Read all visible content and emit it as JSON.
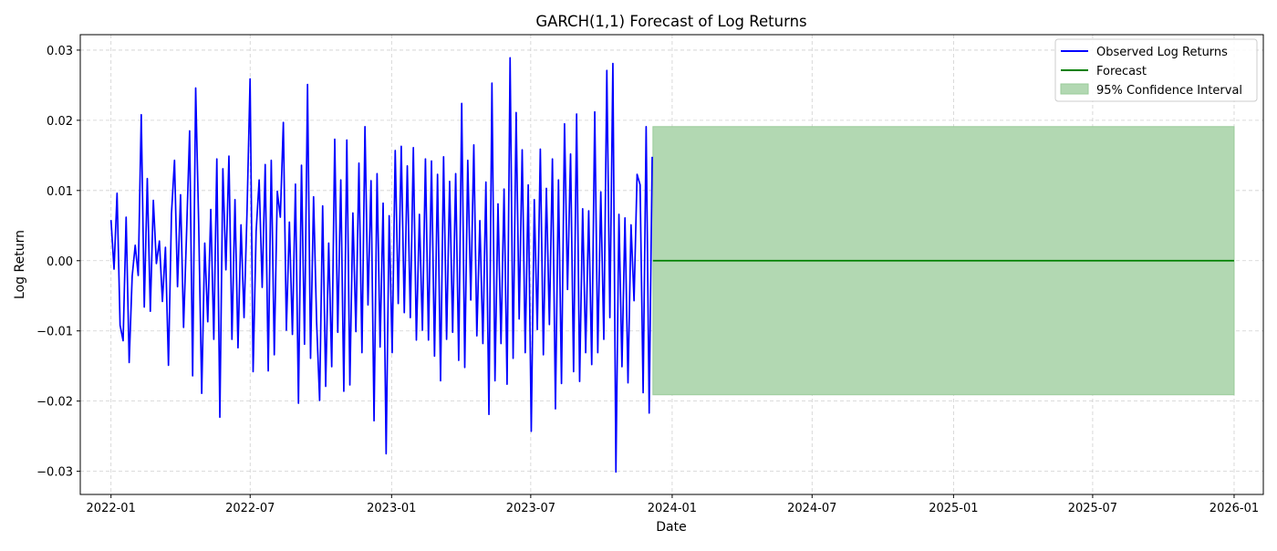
{
  "chart_data": {
    "type": "line",
    "title": "GARCH(1,1) Forecast of Log Returns",
    "xlabel": "Date",
    "ylabel": "Log Return",
    "x_range": [
      "2021-11-22",
      "2026-02-08"
    ],
    "ylim": [
      -0.0333,
      0.0322
    ],
    "x_ticks": [
      "2022-01",
      "2022-07",
      "2023-01",
      "2023-07",
      "2024-01",
      "2024-07",
      "2025-01",
      "2025-07",
      "2026-01"
    ],
    "y_ticks": [
      {
        "value": 0.03,
        "label": "0.03"
      },
      {
        "value": 0.02,
        "label": "0.02"
      },
      {
        "value": 0.01,
        "label": "0.01"
      },
      {
        "value": 0.0,
        "label": "0.00"
      },
      {
        "value": -0.01,
        "label": "−0.01"
      },
      {
        "value": -0.02,
        "label": "−0.02"
      },
      {
        "value": -0.03,
        "label": "−0.03"
      }
    ],
    "grid": true,
    "legend_position": "top-right",
    "series": [
      {
        "name": "Observed Log Returns",
        "kind": "line",
        "color": "#0000ff",
        "start_date": "2022-01-01",
        "end_date": "2023-12-06",
        "values": [
          0.0058,
          -0.0012,
          0.0096,
          -0.0092,
          -0.0114,
          0.0062,
          -0.0145,
          -0.0022,
          0.0022,
          -0.0021,
          0.0208,
          -0.0066,
          0.0117,
          -0.0072,
          0.0086,
          -0.0004,
          0.0028,
          -0.0058,
          0.0019,
          -0.0149,
          0.0067,
          0.0143,
          -0.0037,
          0.0094,
          -0.0095,
          0.0041,
          0.0185,
          -0.0164,
          0.0246,
          0.0052,
          -0.0189,
          0.0025,
          -0.0087,
          0.0073,
          -0.0112,
          0.0145,
          -0.0223,
          0.0131,
          -0.0013,
          0.0149,
          -0.0112,
          0.0087,
          -0.0124,
          0.0051,
          -0.0081,
          0.0072,
          0.0259,
          -0.0158,
          0.0042,
          0.0115,
          -0.0038,
          0.0137,
          -0.0157,
          0.0143,
          -0.0134,
          0.0099,
          0.0062,
          0.0197,
          -0.0099,
          0.0055,
          -0.0105,
          0.0109,
          -0.0203,
          0.0136,
          -0.0119,
          0.0251,
          -0.0139,
          0.0091,
          -0.0087,
          -0.0199,
          0.0078,
          -0.0179,
          0.0025,
          -0.0151,
          0.0173,
          -0.0102,
          0.0115,
          -0.0186,
          0.0172,
          -0.0177,
          0.0068,
          -0.0101,
          0.0139,
          -0.0131,
          0.0191,
          -0.0063,
          0.0114,
          -0.0228,
          0.0124,
          -0.0123,
          0.0082,
          -0.0275,
          0.0064,
          -0.0131,
          0.0157,
          -0.0061,
          0.0163,
          -0.0074,
          0.0135,
          -0.0081,
          0.0161,
          -0.0113,
          0.0066,
          -0.0099,
          0.0145,
          -0.0113,
          0.0142,
          -0.0136,
          0.0123,
          -0.0171,
          0.0148,
          -0.0112,
          0.0113,
          -0.0102,
          0.0124,
          -0.0142,
          0.0224,
          -0.0152,
          0.0143,
          -0.0056,
          0.0165,
          -0.0107,
          0.0057,
          -0.0118,
          0.0112,
          -0.0219,
          0.0253,
          -0.0171,
          0.0081,
          -0.0118,
          0.0102,
          -0.0176,
          0.0289,
          -0.0139,
          0.0211,
          -0.0083,
          0.0158,
          -0.0131,
          0.0108,
          -0.0243,
          0.0087,
          -0.0098,
          0.0159,
          -0.0134,
          0.0103,
          -0.0091,
          0.0145,
          -0.0211,
          0.0115,
          -0.0175,
          0.0195,
          -0.0041,
          0.0152,
          -0.0158,
          0.0209,
          -0.0172,
          0.0074,
          -0.0131,
          0.0071,
          -0.0148,
          0.0212,
          -0.0131,
          0.0098,
          -0.0112,
          0.0271,
          -0.0081,
          0.0281,
          -0.0301,
          0.0066,
          -0.0151,
          0.0061,
          -0.0174,
          0.0051,
          -0.0057,
          0.0123,
          0.0108,
          -0.0188,
          0.0191,
          -0.0217,
          0.0148
        ]
      },
      {
        "name": "Forecast",
        "kind": "line",
        "color": "#008000",
        "start_date": "2023-12-07",
        "end_date": "2026-01-01",
        "value": 0.0
      },
      {
        "name": "95% Confidence Interval",
        "kind": "band",
        "color": "#b2d8b2",
        "edge_color": "#9acb9a",
        "start_date": "2023-12-07",
        "end_date": "2026-01-01",
        "lower": -0.0191,
        "upper": 0.0191
      }
    ]
  }
}
